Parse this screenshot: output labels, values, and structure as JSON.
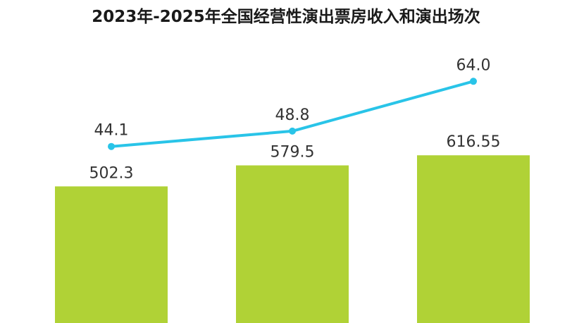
{
  "chart_data": {
    "type": "bar+line",
    "title": "2023年-2025年全国经营性演出票房收入和演出场次",
    "categories": [
      "",
      "",
      ""
    ],
    "series": [
      {
        "type": "bar",
        "values": [
          502.3,
          579.5,
          616.55
        ],
        "labels": [
          "502.3",
          "579.5",
          "616.55"
        ],
        "color": "#b0d236"
      },
      {
        "type": "line",
        "values": [
          44.1,
          48.8,
          64.0
        ],
        "labels": [
          "44.1",
          "48.8",
          "64.0"
        ],
        "color": "#29c4e8"
      }
    ],
    "grid": false,
    "legend": "none"
  }
}
